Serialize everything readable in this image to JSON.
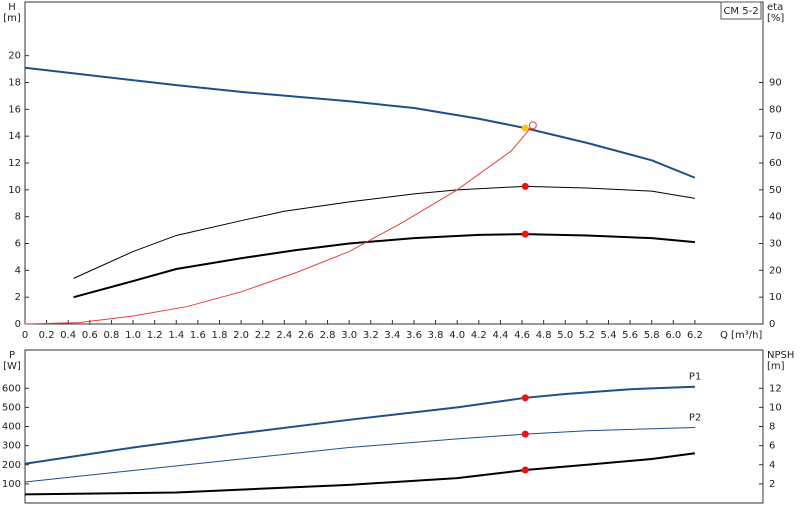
{
  "chart_data": [
    {
      "type": "line",
      "label": "CM 5-2",
      "y_label": "H",
      "y_unit": "[m]",
      "y2_label": "eta",
      "y2_unit": "[%]",
      "x_label": "Q [m³/h]",
      "xlim": [
        0,
        6.83
      ],
      "ylim": [
        0,
        24
      ],
      "y2lim": [
        0,
        120
      ],
      "xticks": [
        0,
        0.2,
        0.4,
        0.6,
        0.8,
        {
          "value": 1,
          "label": "1.0"
        },
        1.2,
        1.4,
        1.6,
        1.8,
        {
          "value": 2,
          "label": "2.0"
        },
        2.2,
        2.4,
        2.6,
        2.8,
        {
          "value": 3,
          "label": "3.0"
        },
        3.2,
        3.4,
        3.6,
        3.8,
        {
          "value": 4,
          "label": "4.0"
        },
        4.2,
        4.4,
        4.6,
        4.8,
        {
          "value": 5,
          "label": "5.0"
        },
        5.2,
        5.4,
        5.6,
        5.8,
        {
          "value": 6,
          "label": "6.0"
        },
        6.2
      ],
      "yticks": [
        0,
        2,
        4,
        6,
        8,
        10,
        12,
        14,
        16,
        18,
        20
      ],
      "y2ticks": [
        0,
        10,
        20,
        30,
        40,
        50,
        60,
        70,
        80,
        90
      ],
      "series": [
        {
          "color": "#1f4e8c",
          "width": 2,
          "x": [
            0,
            1.4,
            2,
            3,
            3.6,
            4.2,
            4.63,
            5.2,
            5.8,
            6.2
          ],
          "values": [
            19.1,
            17.8,
            17.3,
            16.6,
            16.1,
            15.3,
            14.6,
            13.5,
            12.2,
            10.9
          ]
        },
        {
          "color": "#000000",
          "width": 1,
          "axis": "y2",
          "x": [
            0.45,
            1,
            1.4,
            2,
            2.4,
            3,
            3.6,
            4,
            4.63,
            5.2,
            5.8,
            6.2
          ],
          "values": [
            17,
            27,
            33,
            38.5,
            42,
            45.5,
            48.5,
            50,
            51.3,
            50.7,
            49.5,
            46.8
          ]
        },
        {
          "color": "#000000",
          "width": 2,
          "axis": "y2",
          "x": [
            0.45,
            1,
            1.4,
            2,
            2.5,
            3,
            3.6,
            4.2,
            4.63,
            5.2,
            5.8,
            6.2
          ],
          "values": [
            10,
            16,
            20.5,
            24.5,
            27.5,
            30,
            32,
            33.2,
            33.5,
            33,
            32,
            30.5
          ]
        },
        {
          "color": "#e8403a",
          "width": 1,
          "x": [
            0,
            0.5,
            1,
            1.5,
            2,
            2.5,
            3,
            3.5,
            4,
            4.5,
            4.7
          ],
          "values": [
            0,
            0.1,
            0.6,
            1.3,
            2.4,
            3.8,
            5.4,
            7.6,
            10,
            12.9,
            14.8
          ]
        }
      ],
      "points": [
        {
          "x": 4.7,
          "y": 14.8,
          "color": "#e8403a",
          "hollow": true
        },
        {
          "x": 4.63,
          "y": 14.6,
          "color": "#f5c518"
        },
        {
          "x": 4.63,
          "y": 51.3,
          "color": "#ee1111",
          "axis": "y2"
        },
        {
          "x": 4.63,
          "y": 33.5,
          "color": "#ee1111",
          "axis": "y2"
        }
      ]
    },
    {
      "type": "line",
      "y_label": "P",
      "y_unit": "[W]",
      "y2_label": "NPSH",
      "y2_unit": "[m]",
      "xlim": [
        0,
        6.83
      ],
      "ylim": [
        0,
        800
      ],
      "y2lim": [
        0,
        16
      ],
      "yticks": [
        100,
        200,
        300,
        400,
        500,
        600
      ],
      "y2ticks": [
        2,
        4,
        6,
        8,
        10,
        12
      ],
      "series": [
        {
          "name": "P1",
          "color": "#1f4e8c",
          "width": 2,
          "x": [
            0,
            1,
            1.4,
            2,
            3,
            4,
            4.63,
            5,
            5.6,
            6.2
          ],
          "values": [
            205,
            290,
            320,
            365,
            435,
            500,
            550,
            570,
            595,
            608
          ]
        },
        {
          "name": "P2",
          "color": "#1f4e8c",
          "width": 1,
          "x": [
            0,
            1,
            2,
            3,
            4,
            4.63,
            5.2,
            6.2
          ],
          "values": [
            110,
            170,
            230,
            290,
            335,
            360,
            378,
            395
          ]
        },
        {
          "color": "#000000",
          "width": 2,
          "axis": "y2",
          "x": [
            0,
            1.4,
            2,
            3,
            4,
            4.63,
            5.2,
            5.8,
            6.2
          ],
          "values": [
            0.9,
            1.1,
            1.4,
            1.9,
            2.6,
            3.45,
            4.0,
            4.6,
            5.2
          ]
        }
      ],
      "points": [
        {
          "x": 4.63,
          "y": 550,
          "color": "#ee1111"
        },
        {
          "x": 4.63,
          "y": 360,
          "color": "#ee1111"
        },
        {
          "x": 4.63,
          "y": 3.45,
          "color": "#ee1111",
          "axis": "y2"
        }
      ]
    }
  ]
}
